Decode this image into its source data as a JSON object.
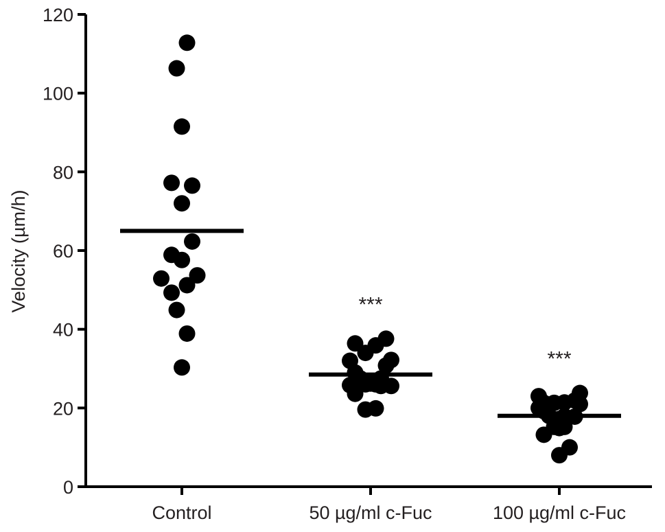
{
  "chart_data": {
    "type": "scatter",
    "title": "",
    "xlabel": "",
    "ylabel": "Velocity (µm/h)",
    "ylim": [
      0,
      120
    ],
    "yticks": [
      0,
      20,
      40,
      60,
      80,
      100,
      120
    ],
    "grid": false,
    "legend": "none",
    "categories": [
      "Control",
      "50 µg/ml c-Fuc",
      "100 µg/ml c-Fuc"
    ],
    "groups": [
      {
        "category": "Control",
        "mean": 65,
        "significance": "",
        "points": [
          {
            "x": 0.1,
            "y": 112.8
          },
          {
            "x": -0.1,
            "y": 106.3
          },
          {
            "x": 0.0,
            "y": 91.5
          },
          {
            "x": -0.2,
            "y": 77.2
          },
          {
            "x": 0.2,
            "y": 76.5
          },
          {
            "x": 0.0,
            "y": 72.0
          },
          {
            "x": 0.2,
            "y": 62.3
          },
          {
            "x": -0.2,
            "y": 58.9
          },
          {
            "x": 0.0,
            "y": 57.6
          },
          {
            "x": 0.3,
            "y": 53.7
          },
          {
            "x": -0.4,
            "y": 52.9
          },
          {
            "x": 0.1,
            "y": 51.2
          },
          {
            "x": -0.2,
            "y": 49.3
          },
          {
            "x": -0.1,
            "y": 44.9
          },
          {
            "x": 0.1,
            "y": 38.9
          },
          {
            "x": 0.0,
            "y": 30.3
          }
        ]
      },
      {
        "category": "50 µg/ml c-Fuc",
        "mean": 28.5,
        "significance": "***",
        "points": [
          {
            "x": 0.3,
            "y": 37.6
          },
          {
            "x": -0.3,
            "y": 36.4
          },
          {
            "x": 0.1,
            "y": 35.9
          },
          {
            "x": -0.1,
            "y": 34.0
          },
          {
            "x": -0.4,
            "y": 32.0
          },
          {
            "x": 0.4,
            "y": 32.2
          },
          {
            "x": 0.3,
            "y": 30.8
          },
          {
            "x": -0.3,
            "y": 29.0
          },
          {
            "x": -0.2,
            "y": 27.5
          },
          {
            "x": 0.2,
            "y": 27.5
          },
          {
            "x": -0.4,
            "y": 25.8
          },
          {
            "x": -0.1,
            "y": 26.0
          },
          {
            "x": 0.0,
            "y": 26.2
          },
          {
            "x": 0.1,
            "y": 26.0
          },
          {
            "x": 0.2,
            "y": 25.6
          },
          {
            "x": 0.4,
            "y": 25.6
          },
          {
            "x": -0.3,
            "y": 23.6
          },
          {
            "x": -0.1,
            "y": 19.6
          },
          {
            "x": 0.1,
            "y": 19.9
          }
        ]
      },
      {
        "category": "100 µg/ml c-Fuc",
        "mean": 18,
        "significance": "***",
        "points": [
          {
            "x": 0.4,
            "y": 23.8
          },
          {
            "x": -0.4,
            "y": 23.0
          },
          {
            "x": 0.3,
            "y": 21.9
          },
          {
            "x": -0.3,
            "y": 21.3
          },
          {
            "x": -0.1,
            "y": 21.3
          },
          {
            "x": 0.1,
            "y": 21.4
          },
          {
            "x": 0.4,
            "y": 21.0
          },
          {
            "x": -0.4,
            "y": 20.0
          },
          {
            "x": -0.3,
            "y": 19.2
          },
          {
            "x": -0.2,
            "y": 18.0
          },
          {
            "x": 0.1,
            "y": 17.9
          },
          {
            "x": 0.3,
            "y": 17.8
          },
          {
            "x": 0.0,
            "y": 17.2
          },
          {
            "x": -0.1,
            "y": 15.2
          },
          {
            "x": 0.0,
            "y": 14.9
          },
          {
            "x": 0.1,
            "y": 15.2
          },
          {
            "x": -0.3,
            "y": 13.2
          },
          {
            "x": 0.2,
            "y": 10.0
          },
          {
            "x": 0.0,
            "y": 8.0
          }
        ]
      }
    ]
  }
}
